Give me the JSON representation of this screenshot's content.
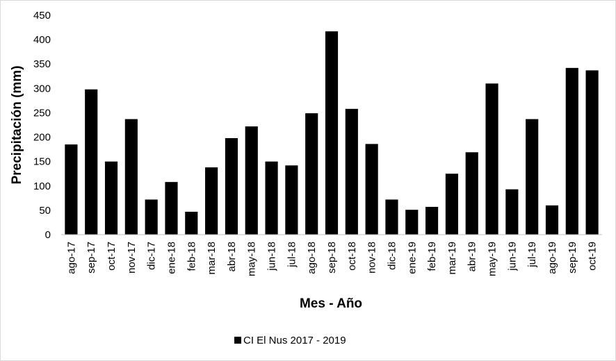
{
  "chart_data": {
    "type": "bar",
    "title": "",
    "xlabel": "Mes - Año",
    "ylabel": "Precipitación (mm)",
    "ylim": [
      0,
      450
    ],
    "yticks": [
      0,
      50,
      100,
      150,
      200,
      250,
      300,
      350,
      400,
      450
    ],
    "grid": false,
    "legend_position": "bottom",
    "bar_color": "#000000",
    "categories": [
      "ago-17",
      "sep-17",
      "oct-17",
      "nov-17",
      "dic-17",
      "ene-18",
      "feb-18",
      "mar-18",
      "abr-18",
      "may-18",
      "jun-18",
      "jul-18",
      "ago-18",
      "sep-18",
      "oct-18",
      "nov-18",
      "dic-18",
      "ene-19",
      "feb-19",
      "mar-19",
      "abr-19",
      "may-19",
      "jun-19",
      "jul-19",
      "ago-19",
      "sep-19",
      "oct-19"
    ],
    "series": [
      {
        "name": "CI El Nus 2017 - 2019",
        "values": [
          185,
          298,
          150,
          237,
          72,
          108,
          47,
          138,
          198,
          222,
          150,
          142,
          249,
          417,
          258,
          186,
          72,
          51,
          57,
          125,
          169,
          310,
          93,
          237,
          60,
          342,
          337
        ]
      }
    ]
  }
}
